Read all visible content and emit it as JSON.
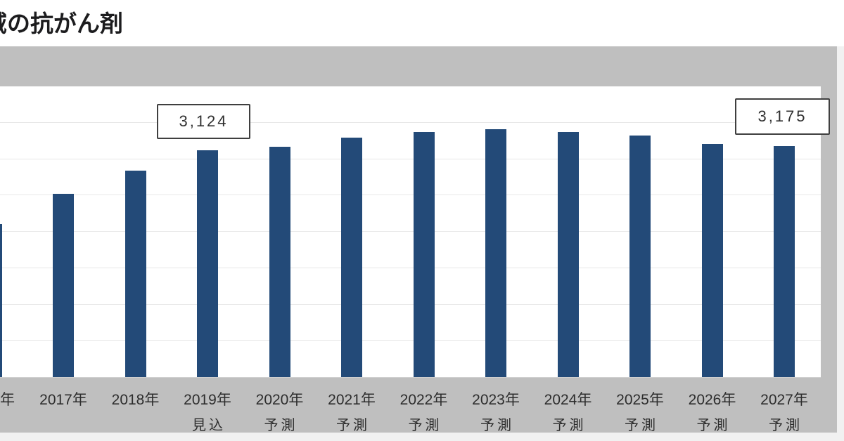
{
  "header": {
    "title": "域の抗がん剤"
  },
  "chart_data": {
    "type": "bar",
    "title": "域の抗がん剤",
    "xlabel": "",
    "ylabel": "",
    "ylim": [
      0,
      4000
    ],
    "gridline_step": 500,
    "grid": true,
    "legend": "none",
    "bar_color": "#234a78",
    "background_color": "#bfbfbf",
    "plot_background": "#ffffff",
    "categories": [
      "年",
      "2017年",
      "2018年",
      "2019年",
      "2020年",
      "2021年",
      "2022年",
      "2023年",
      "2024年",
      "2025年",
      "2026年",
      "2027年"
    ],
    "qualifiers": [
      "",
      "",
      "",
      "見込",
      "予測",
      "予測",
      "予測",
      "予測",
      "予測",
      "予測",
      "予測",
      "予測"
    ],
    "values": [
      2110,
      2520,
      2840,
      3124,
      3165,
      3290,
      3370,
      3410,
      3370,
      3320,
      3210,
      3175
    ],
    "callouts": [
      {
        "target_index": 3,
        "text": "3,124"
      },
      {
        "target_index": 11,
        "text": "3,175"
      }
    ]
  }
}
